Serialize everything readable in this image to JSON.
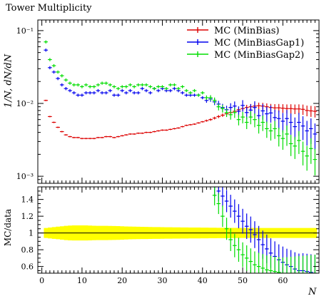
{
  "title": "Tower Multiplicity",
  "ylabel_main": "1/N, dN/dN",
  "ylabel_ratio": "MC/data",
  "xlabel": "N",
  "chart_data": [
    {
      "type": "line",
      "title": "Tower Multiplicity",
      "xlabel": "N",
      "ylabel": "1/N, dN/dN",
      "yscale": "log",
      "xlim": [
        -1,
        69
      ],
      "ylim": [
        0.0008,
        0.14
      ],
      "yticks": [
        {
          "v": 0.001,
          "label": "10⁻³"
        },
        {
          "v": 0.01,
          "label": "10⁻²"
        },
        {
          "v": 0.1,
          "label": "10⁻¹"
        }
      ],
      "xticks": [
        0,
        10,
        20,
        30,
        40,
        50,
        60
      ],
      "legend_position": "top-right",
      "colors": {
        "MC (MinBias)": "#dd0000",
        "MC (MinBiasGap1)": "#0000ee",
        "MC (MinBiasGap2)": "#00dd00"
      },
      "x": [
        1,
        2,
        3,
        4,
        5,
        6,
        7,
        8,
        9,
        10,
        11,
        12,
        13,
        14,
        15,
        16,
        17,
        18,
        19,
        20,
        21,
        22,
        23,
        24,
        25,
        26,
        27,
        28,
        29,
        30,
        31,
        32,
        33,
        34,
        35,
        36,
        37,
        38,
        39,
        40,
        41,
        42,
        43,
        44,
        45,
        46,
        47,
        48,
        49,
        50,
        51,
        52,
        53,
        54,
        55,
        56,
        57,
        58,
        59,
        60,
        61,
        62,
        63,
        64,
        65,
        66,
        67,
        68
      ],
      "series": [
        {
          "name": "MC (MinBias)",
          "values": [
            0.011,
            0.0066,
            0.0055,
            0.0047,
            0.0041,
            0.0037,
            0.0035,
            0.0034,
            0.0034,
            0.0033,
            0.0033,
            0.0033,
            0.0033,
            0.0034,
            0.0034,
            0.0035,
            0.0035,
            0.0034,
            0.0035,
            0.0036,
            0.0037,
            0.0038,
            0.0038,
            0.0039,
            0.0039,
            0.004,
            0.004,
            0.0041,
            0.0042,
            0.0043,
            0.0043,
            0.0044,
            0.0045,
            0.0046,
            0.0048,
            0.005,
            0.0051,
            0.0052,
            0.0054,
            0.0056,
            0.0058,
            0.006,
            0.0063,
            0.0066,
            0.0069,
            0.0072,
            0.0075,
            0.0078,
            0.0082,
            0.0085,
            0.0088,
            0.009,
            0.0092,
            0.0093,
            0.0092,
            0.009,
            0.0088,
            0.0087,
            0.0087,
            0.0086,
            0.0085,
            0.0085,
            0.0084,
            0.0084,
            0.0083,
            0.008,
            0.0079,
            0.0078
          ]
        },
        {
          "name": "MC (MinBiasGap1)",
          "values": [
            0.054,
            0.031,
            0.027,
            0.022,
            0.018,
            0.016,
            0.015,
            0.014,
            0.013,
            0.013,
            0.014,
            0.014,
            0.014,
            0.015,
            0.014,
            0.014,
            0.015,
            0.013,
            0.013,
            0.015,
            0.014,
            0.015,
            0.014,
            0.014,
            0.016,
            0.015,
            0.014,
            0.016,
            0.015,
            0.016,
            0.015,
            0.015,
            0.016,
            0.015,
            0.014,
            0.013,
            0.013,
            0.013,
            0.013,
            0.012,
            0.011,
            0.0115,
            0.0105,
            0.0098,
            0.0088,
            0.0082,
            0.0088,
            0.0092,
            0.0078,
            0.0094,
            0.0075,
            0.0081,
            0.0088,
            0.0068,
            0.0079,
            0.0072,
            0.0074,
            0.0064,
            0.0062,
            0.0057,
            0.0062,
            0.0055,
            0.0048,
            0.0055,
            0.0049,
            0.0042,
            0.0045,
            0.0038
          ]
        },
        {
          "name": "MC (MinBiasGap2)",
          "values": [
            0.07,
            0.04,
            0.033,
            0.027,
            0.024,
            0.021,
            0.019,
            0.018,
            0.018,
            0.017,
            0.018,
            0.017,
            0.017,
            0.018,
            0.019,
            0.019,
            0.018,
            0.017,
            0.016,
            0.017,
            0.017,
            0.018,
            0.017,
            0.018,
            0.018,
            0.018,
            0.017,
            0.016,
            0.017,
            0.017,
            0.016,
            0.018,
            0.018,
            0.016,
            0.017,
            0.015,
            0.014,
            0.015,
            0.013,
            0.014,
            0.012,
            0.012,
            0.011,
            0.009,
            0.0085,
            0.0075,
            0.007,
            0.0075,
            0.006,
            0.0065,
            0.0055,
            0.0065,
            0.006,
            0.005,
            0.0055,
            0.0045,
            0.0042,
            0.0045,
            0.0036,
            0.0033,
            0.0038,
            0.0028,
            0.0026,
            0.0031,
            0.0022,
            0.0019,
            0.0024,
            0.0017
          ]
        }
      ]
    },
    {
      "type": "line",
      "ylabel": "MC/data",
      "xlim": [
        -1,
        69
      ],
      "ylim": [
        0.52,
        1.55
      ],
      "yticks": [
        0.6,
        0.8,
        1,
        1.2,
        1.4
      ],
      "reference_line": 1,
      "uncertainty_band": {
        "color": "#ffff00",
        "half_width": [
          0.06,
          0.065,
          0.07,
          0.075,
          0.08,
          0.085,
          0.088,
          0.09,
          0.09,
          0.09,
          0.09,
          0.088,
          0.086,
          0.085,
          0.085,
          0.085,
          0.084,
          0.083,
          0.082,
          0.08,
          0.078,
          0.076,
          0.075,
          0.074,
          0.073,
          0.072,
          0.071,
          0.07,
          0.07,
          0.069,
          0.068,
          0.068,
          0.067,
          0.067,
          0.066,
          0.066,
          0.065,
          0.065,
          0.065,
          0.064,
          0.064,
          0.063,
          0.063,
          0.062,
          0.062,
          0.062,
          0.061,
          0.061,
          0.061,
          0.06,
          0.06,
          0.06,
          0.06,
          0.06,
          0.06,
          0.06,
          0.06,
          0.06,
          0.06,
          0.06,
          0.06,
          0.06,
          0.06,
          0.06,
          0.06,
          0.06,
          0.06,
          0.06
        ]
      },
      "x": [
        43,
        44,
        45,
        46,
        47,
        48,
        49,
        50,
        51,
        52,
        53,
        54,
        55,
        56,
        57,
        58,
        59,
        60,
        61,
        62,
        63,
        64,
        65,
        66,
        67,
        68
      ],
      "series": [
        {
          "name": "MC (MinBiasGap1)",
          "values": [
            1.55,
            1.5,
            1.44,
            1.38,
            1.32,
            1.26,
            1.2,
            1.14,
            1.08,
            1.04,
            0.98,
            0.92,
            0.86,
            0.81,
            0.76,
            0.72,
            0.68,
            0.65,
            0.62,
            0.6,
            0.57,
            0.55,
            0.55,
            0.54,
            0.53,
            0.52
          ]
        },
        {
          "name": "MC (MinBiasGap2)",
          "values": [
            1.45,
            1.35,
            1.2,
            1.05,
            0.92,
            0.85,
            0.8,
            0.74,
            0.7,
            0.66,
            0.62,
            0.6,
            0.58,
            0.56,
            0.55,
            0.54,
            0.53,
            0.52,
            0.52,
            0.52,
            0.52,
            0.52,
            0.52,
            0.52,
            0.52,
            0.52
          ]
        }
      ]
    }
  ]
}
